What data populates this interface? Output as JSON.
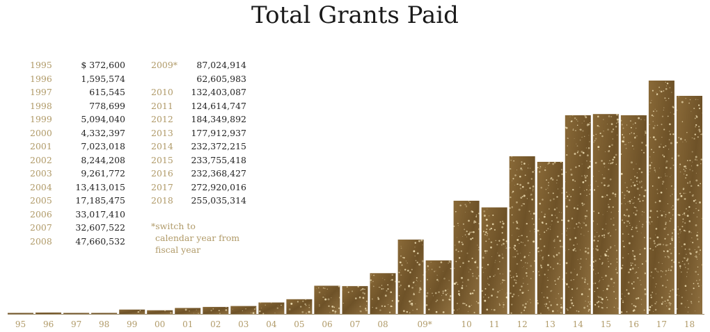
{
  "title": "Total Grants Paid",
  "table": {
    "col1": [
      {
        "year": "1995",
        "value": "$   372,600"
      },
      {
        "year": "1996",
        "value": "1,595,574"
      },
      {
        "year": "1997",
        "value": "615,545"
      },
      {
        "year": "1998",
        "value": "778,699"
      },
      {
        "year": "1999",
        "value": "5,094,040"
      },
      {
        "year": "2000",
        "value": "4,332,397"
      },
      {
        "year": "2001",
        "value": "7,023,018"
      },
      {
        "year": "2002",
        "value": "8,244,208"
      },
      {
        "year": "2003",
        "value": "9,261,772"
      },
      {
        "year": "2004",
        "value": "13,413,015"
      },
      {
        "year": "2005",
        "value": "17,185,475"
      },
      {
        "year": "2006",
        "value": "33,017,410"
      },
      {
        "year": "2007",
        "value": "32,607,522"
      },
      {
        "year": "2008",
        "value": "47,660,532"
      }
    ],
    "col2": [
      {
        "year": "2009*",
        "value": "87,024,914"
      },
      {
        "year": "",
        "value": "62,605,983"
      },
      {
        "year": "2010",
        "value": "132,403,087"
      },
      {
        "year": "2011",
        "value": "124,614,747"
      },
      {
        "year": "2012",
        "value": "184,349,892"
      },
      {
        "year": "2013",
        "value": "177,912,937"
      },
      {
        "year": "2014",
        "value": "232,372,215"
      },
      {
        "year": "2015",
        "value": "233,755,418"
      },
      {
        "year": "2016",
        "value": "232,368,427"
      },
      {
        "year": "2017",
        "value": "272,920,016"
      },
      {
        "year": "2018",
        "value": "255,035,314"
      }
    ]
  },
  "note": {
    "line1": "*switch to",
    "line2": "calendar year from",
    "line3": "fiscal year"
  },
  "colors": {
    "bar": "#7a5c2e",
    "bar_light": "#a5834a",
    "year_label": "#b09a68",
    "axis": "#9a8a6a"
  },
  "chart_data": {
    "type": "bar",
    "title": "Total Grants Paid",
    "xlabel": "",
    "ylabel": "",
    "grid": false,
    "legend": "none",
    "ylim": [
      0,
      272920016
    ],
    "categories": [
      "95",
      "96",
      "97",
      "98",
      "99",
      "00",
      "01",
      "02",
      "03",
      "04",
      "05",
      "06",
      "07",
      "08",
      "09*",
      "",
      "10",
      "11",
      "12",
      "13",
      "14",
      "15",
      "16",
      "17",
      "18"
    ],
    "values": [
      372600,
      1595574,
      615545,
      778699,
      5094040,
      4332397,
      7023018,
      8244208,
      9261772,
      13413015,
      17185475,
      33017410,
      32607522,
      47660532,
      87024914,
      62605983,
      132403087,
      124614747,
      184349892,
      177912937,
      232372215,
      233755418,
      232368427,
      272920016,
      255035314
    ]
  }
}
